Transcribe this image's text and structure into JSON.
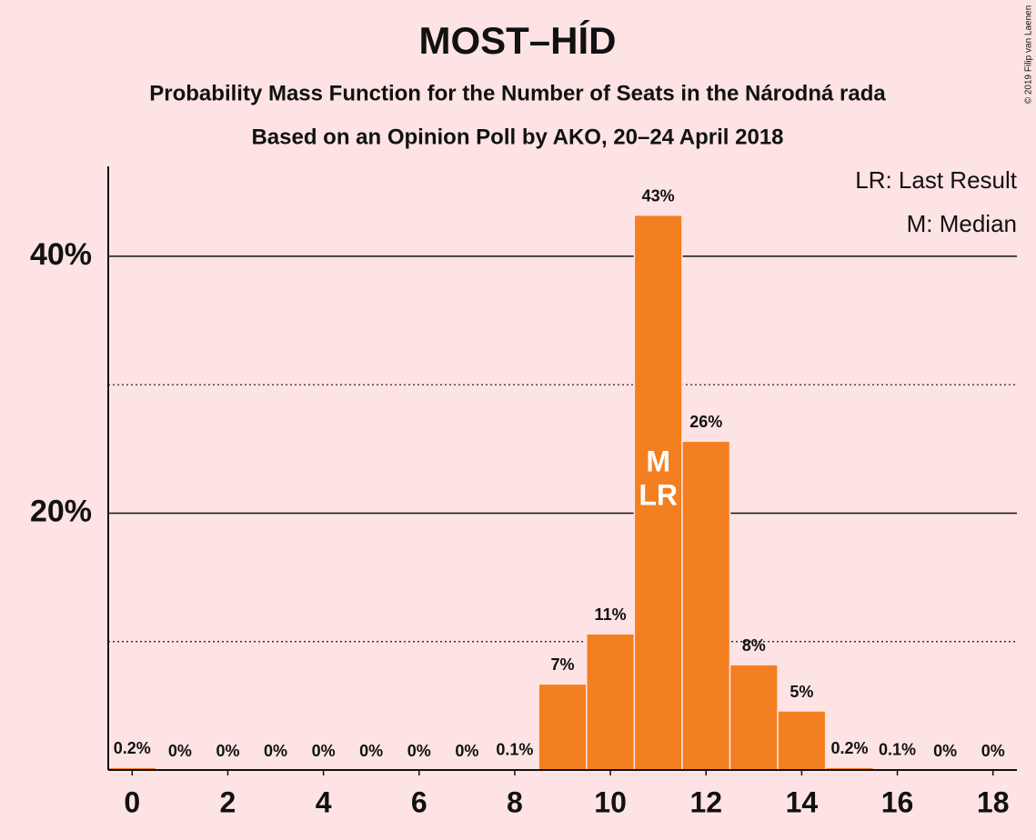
{
  "chart_data": {
    "type": "bar",
    "title": "MOST–HÍD",
    "subtitle": [
      "Probability Mass Function for the Number of Seats in the Národná rada",
      "Based on an Opinion Poll by AKO, 20–24 April 2018"
    ],
    "copyright": "© 2019 Filip van Laenen",
    "x": [
      0,
      1,
      2,
      3,
      4,
      5,
      6,
      7,
      8,
      9,
      10,
      11,
      12,
      13,
      14,
      15,
      16,
      17,
      18
    ],
    "values": [
      0.2,
      0,
      0,
      0,
      0,
      0,
      0,
      0,
      0.1,
      6.7,
      10.6,
      43.2,
      25.6,
      8.2,
      4.6,
      0.2,
      0.1,
      0,
      0
    ],
    "value_labels": [
      "0.2%",
      "0%",
      "0%",
      "0%",
      "0%",
      "0%",
      "0%",
      "0%",
      "0.1%",
      "7%",
      "11%",
      "43%",
      "26%",
      "8%",
      "5%",
      "0.2%",
      "0.1%",
      "0%",
      "0%"
    ],
    "color": "#f47f20",
    "xlim": [
      -0.5,
      18.5
    ],
    "xticks": [
      0,
      2,
      4,
      6,
      8,
      10,
      12,
      14,
      16,
      18
    ],
    "ylim": [
      0,
      47
    ],
    "yticks": [
      {
        "value": 20,
        "label": "20%"
      },
      {
        "value": 40,
        "label": "40%"
      }
    ],
    "minor_yticks": [
      10,
      30
    ],
    "grid": true,
    "median": 11,
    "median_label": "M",
    "last_result": 11,
    "last_result_label": "LR",
    "legend": [
      "LR: Last Result",
      "M: Median"
    ],
    "legend_position": "upper right"
  }
}
